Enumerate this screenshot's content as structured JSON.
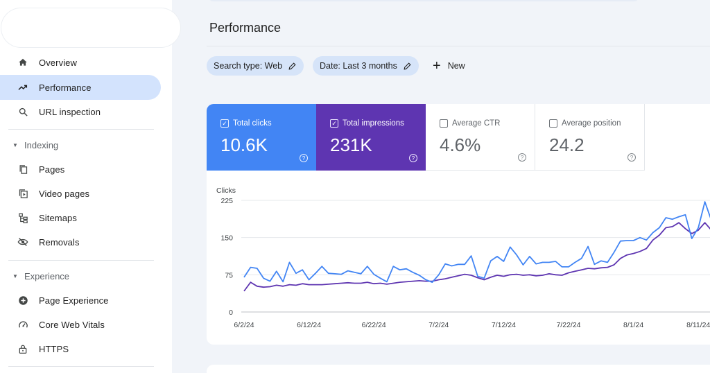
{
  "sidebar": {
    "items": [
      {
        "label": "Overview",
        "icon": "home-icon"
      },
      {
        "label": "Performance",
        "icon": "trending-up-icon",
        "active": true
      },
      {
        "label": "URL inspection",
        "icon": "search-icon"
      }
    ],
    "sections": [
      {
        "label": "Indexing",
        "items": [
          {
            "label": "Pages",
            "icon": "pages-icon"
          },
          {
            "label": "Video pages",
            "icon": "video-pages-icon"
          },
          {
            "label": "Sitemaps",
            "icon": "sitemap-icon"
          },
          {
            "label": "Removals",
            "icon": "eye-off-icon"
          }
        ]
      },
      {
        "label": "Experience",
        "items": [
          {
            "label": "Page Experience",
            "icon": "page-experience-icon"
          },
          {
            "label": "Core Web Vitals",
            "icon": "speedometer-icon"
          },
          {
            "label": "HTTPS",
            "icon": "lock-icon"
          }
        ]
      }
    ]
  },
  "main": {
    "title": "Performance",
    "filters": {
      "search_type": "Search type: Web",
      "date": "Date: Last 3 months",
      "new_label": "New"
    },
    "metrics": [
      {
        "label": "Total clicks",
        "value": "10.6K",
        "checked": true,
        "color": "#4285f4"
      },
      {
        "label": "Total impressions",
        "value": "231K",
        "checked": true,
        "color": "#5e35b1"
      },
      {
        "label": "Average CTR",
        "value": "4.6%",
        "checked": false
      },
      {
        "label": "Average position",
        "value": "24.2",
        "checked": false
      }
    ]
  },
  "chart_data": {
    "type": "line",
    "ylabel": "Clicks",
    "ylim": [
      0,
      225
    ],
    "yticks": [
      0,
      75,
      150,
      225
    ],
    "xlabel": "",
    "xlim": [
      "6/2/24",
      "8/14/24"
    ],
    "xticks": [
      "6/2/24",
      "6/12/24",
      "6/22/24",
      "7/2/24",
      "7/12/24",
      "7/22/24",
      "8/1/24",
      "8/11/24"
    ],
    "grid": true,
    "series": [
      {
        "name": "Total clicks",
        "color": "#4285f4",
        "points": [
          [
            "6/2/24",
            70
          ],
          [
            "6/3/24",
            90
          ],
          [
            "6/4/24",
            88
          ],
          [
            "6/5/24",
            68
          ],
          [
            "6/6/24",
            62
          ],
          [
            "6/7/24",
            82
          ],
          [
            "6/8/24",
            61
          ],
          [
            "6/9/24",
            100
          ],
          [
            "6/10/24",
            78
          ],
          [
            "6/11/24",
            85
          ],
          [
            "6/12/24",
            65
          ],
          [
            "6/13/24",
            78
          ],
          [
            "6/14/24",
            92
          ],
          [
            "6/15/24",
            78
          ],
          [
            "6/16/24",
            77
          ],
          [
            "6/17/24",
            76
          ],
          [
            "6/18/24",
            83
          ],
          [
            "6/19/24",
            80
          ],
          [
            "6/20/24",
            77
          ],
          [
            "6/21/24",
            92
          ],
          [
            "6/22/24",
            76
          ],
          [
            "6/23/24",
            68
          ],
          [
            "6/24/24",
            61
          ],
          [
            "6/25/24",
            92
          ],
          [
            "6/26/24",
            85
          ],
          [
            "6/27/24",
            87
          ],
          [
            "6/28/24",
            80
          ],
          [
            "6/29/24",
            74
          ],
          [
            "6/30/24",
            65
          ],
          [
            "7/1/24",
            60
          ],
          [
            "7/2/24",
            75
          ],
          [
            "7/3/24",
            97
          ],
          [
            "7/4/24",
            93
          ],
          [
            "7/5/24",
            96
          ],
          [
            "7/6/24",
            96
          ],
          [
            "7/7/24",
            113
          ],
          [
            "7/8/24",
            72
          ],
          [
            "7/9/24",
            68
          ],
          [
            "7/10/24",
            103
          ],
          [
            "7/11/24",
            112
          ],
          [
            "7/12/24",
            102
          ],
          [
            "7/13/24",
            131
          ],
          [
            "7/14/24",
            115
          ],
          [
            "7/15/24",
            95
          ],
          [
            "7/16/24",
            112
          ],
          [
            "7/17/24",
            97
          ],
          [
            "7/18/24",
            100
          ],
          [
            "7/19/24",
            100
          ],
          [
            "7/20/24",
            102
          ],
          [
            "7/21/24",
            91
          ],
          [
            "7/22/24",
            91
          ],
          [
            "7/23/24",
            100
          ],
          [
            "7/24/24",
            108
          ],
          [
            "7/25/24",
            132
          ],
          [
            "7/26/24",
            96
          ],
          [
            "7/27/24",
            103
          ],
          [
            "7/28/24",
            100
          ],
          [
            "7/29/24",
            120
          ],
          [
            "7/30/24",
            143
          ],
          [
            "7/31/24",
            144
          ],
          [
            "8/1/24",
            144
          ],
          [
            "8/2/24",
            150
          ],
          [
            "8/3/24",
            145
          ],
          [
            "8/4/24",
            160
          ],
          [
            "8/5/24",
            170
          ],
          [
            "8/6/24",
            190
          ],
          [
            "8/7/24",
            187
          ],
          [
            "8/8/24",
            192
          ],
          [
            "8/9/24",
            196
          ],
          [
            "8/10/24",
            148
          ],
          [
            "8/11/24",
            170
          ],
          [
            "8/12/24",
            222
          ],
          [
            "8/13/24",
            185
          ],
          [
            "8/14/24",
            198
          ]
        ]
      },
      {
        "name": "Total impressions",
        "color": "#5e35b1",
        "points": [
          [
            "6/2/24",
            42
          ],
          [
            "6/3/24",
            60
          ],
          [
            "6/4/24",
            52
          ],
          [
            "6/5/24",
            50
          ],
          [
            "6/6/24",
            51
          ],
          [
            "6/7/24",
            54
          ],
          [
            "6/8/24",
            52
          ],
          [
            "6/9/24",
            55
          ],
          [
            "6/10/24",
            54
          ],
          [
            "6/11/24",
            57
          ],
          [
            "6/12/24",
            55
          ],
          [
            "6/13/24",
            55
          ],
          [
            "6/14/24",
            55
          ],
          [
            "6/15/24",
            56
          ],
          [
            "6/16/24",
            57
          ],
          [
            "6/17/24",
            58
          ],
          [
            "6/18/24",
            59
          ],
          [
            "6/19/24",
            58
          ],
          [
            "6/20/24",
            58
          ],
          [
            "6/21/24",
            60
          ],
          [
            "6/22/24",
            57
          ],
          [
            "6/23/24",
            58
          ],
          [
            "6/24/24",
            56
          ],
          [
            "6/25/24",
            58
          ],
          [
            "6/26/24",
            60
          ],
          [
            "6/27/24",
            61
          ],
          [
            "6/28/24",
            62
          ],
          [
            "6/29/24",
            63
          ],
          [
            "6/30/24",
            62
          ],
          [
            "7/1/24",
            62
          ],
          [
            "7/2/24",
            65
          ],
          [
            "7/3/24",
            67
          ],
          [
            "7/4/24",
            70
          ],
          [
            "7/5/24",
            73
          ],
          [
            "7/6/24",
            76
          ],
          [
            "7/7/24",
            74
          ],
          [
            "7/8/24",
            69
          ],
          [
            "7/9/24",
            65
          ],
          [
            "7/10/24",
            70
          ],
          [
            "7/11/24",
            74
          ],
          [
            "7/12/24",
            72
          ],
          [
            "7/13/24",
            75
          ],
          [
            "7/14/24",
            76
          ],
          [
            "7/15/24",
            74
          ],
          [
            "7/16/24",
            75
          ],
          [
            "7/17/24",
            73
          ],
          [
            "7/18/24",
            74
          ],
          [
            "7/19/24",
            77
          ],
          [
            "7/20/24",
            75
          ],
          [
            "7/21/24",
            74
          ],
          [
            "7/22/24",
            79
          ],
          [
            "7/23/24",
            82
          ],
          [
            "7/24/24",
            85
          ],
          [
            "7/25/24",
            88
          ],
          [
            "7/26/24",
            87
          ],
          [
            "7/27/24",
            89
          ],
          [
            "7/28/24",
            90
          ],
          [
            "7/29/24",
            95
          ],
          [
            "7/30/24",
            108
          ],
          [
            "7/31/24",
            115
          ],
          [
            "8/1/24",
            118
          ],
          [
            "8/2/24",
            122
          ],
          [
            "8/3/24",
            128
          ],
          [
            "8/4/24",
            145
          ],
          [
            "8/5/24",
            155
          ],
          [
            "8/6/24",
            170
          ],
          [
            "8/7/24",
            172
          ],
          [
            "8/8/24",
            180
          ],
          [
            "8/9/24",
            168
          ],
          [
            "8/10/24",
            158
          ],
          [
            "8/11/24",
            165
          ],
          [
            "8/12/24",
            180
          ],
          [
            "8/13/24",
            165
          ],
          [
            "8/14/24",
            172
          ]
        ]
      }
    ]
  }
}
